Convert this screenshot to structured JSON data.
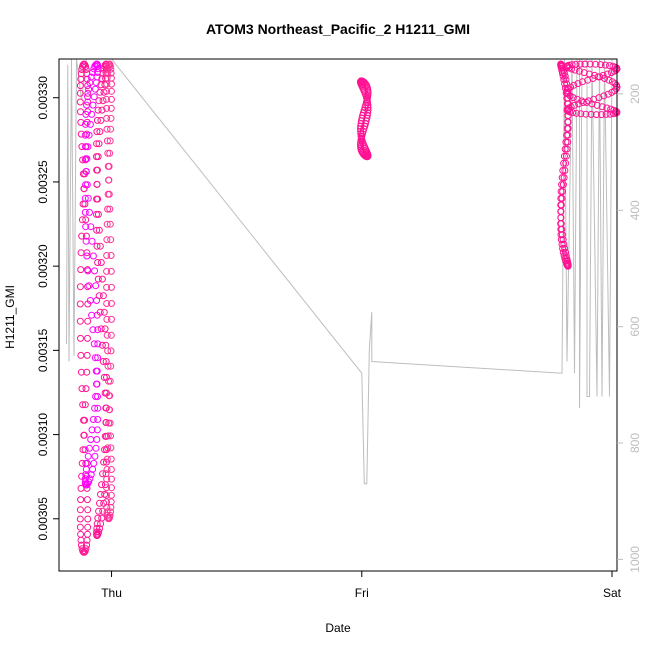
{
  "chart_data": {
    "type": "scatter",
    "title": "ATOM3 Northeast_Pacific_2 H1211_GMI",
    "xlabel": "Date",
    "ylabel": "H1211_GMI",
    "x_ticks": [
      "Thu",
      "Fri",
      "Sat"
    ],
    "y_ticks": [
      "0.00305",
      "0.00310",
      "0.00315",
      "0.00320",
      "0.00325",
      "0.00330"
    ],
    "y_tick_values": [
      0.00305,
      0.0031,
      0.00315,
      0.0032,
      0.00325,
      0.0033
    ],
    "ylim": [
      0.003019,
      0.003323
    ],
    "right_axis": {
      "label": "",
      "ticks": [
        "200",
        "400",
        "600",
        "800",
        "1000"
      ],
      "tick_values": [
        200,
        400,
        600,
        800,
        1000
      ],
      "inverted": true,
      "lim": [
        1020,
        140
      ],
      "color": "#bdbdbd"
    },
    "xlim_days": [
      -0.21,
      2.02
    ],
    "marker_colors": [
      "#ff00ff",
      "#ff1493",
      "#ff3399",
      "#cc33cc"
    ],
    "point_groups": [
      {
        "center_day": -0.11,
        "day_span": 0.03,
        "top": 0.00332,
        "bottom": 0.00303,
        "color": "#ff1493"
      },
      {
        "center_day": -0.08,
        "day_span": 0.05,
        "top": 0.00332,
        "bottom": 0.00307,
        "color": "#ff00ff"
      },
      {
        "center_day": -0.04,
        "day_span": 0.04,
        "top": 0.00332,
        "bottom": 0.00304,
        "color": "#ff1493"
      },
      {
        "center_day": -0.01,
        "day_span": 0.02,
        "top": 0.00332,
        "bottom": 0.00305,
        "color": "#ff3399"
      },
      {
        "center_day": 1.01,
        "day_span": 0.03,
        "top": 0.00331,
        "bottom": 0.003265,
        "color": "#ff1493"
      },
      {
        "center_day": 1.81,
        "day_span": 0.03,
        "top": 0.00332,
        "bottom": 0.0032,
        "color": "#ff1493"
      },
      {
        "center_day": 1.92,
        "day_span": 0.2,
        "top": 0.00332,
        "bottom": 0.00329,
        "color": "#ff1493"
      }
    ],
    "depth_series": [
      {
        "day": -0.18,
        "value": 630
      },
      {
        "day": -0.175,
        "value": 150
      },
      {
        "day": -0.17,
        "value": 660
      },
      {
        "day": -0.16,
        "value": 140
      },
      {
        "day": -0.15,
        "value": 650
      },
      {
        "day": -0.14,
        "value": 140
      },
      {
        "day": -0.12,
        "value": 210
      },
      {
        "day": -0.1,
        "value": 140
      },
      {
        "day": 0.0,
        "value": 140
      },
      {
        "day": 1.0,
        "value": 680
      },
      {
        "day": 1.01,
        "value": 870
      },
      {
        "day": 1.02,
        "value": 870
      },
      {
        "day": 1.03,
        "value": 640
      },
      {
        "day": 1.04,
        "value": 575
      },
      {
        "day": 1.04,
        "value": 660
      },
      {
        "day": 1.8,
        "value": 680
      },
      {
        "day": 1.81,
        "value": 140
      },
      {
        "day": 1.82,
        "value": 660
      },
      {
        "day": 1.84,
        "value": 140
      },
      {
        "day": 1.85,
        "value": 680
      },
      {
        "day": 1.86,
        "value": 140
      },
      {
        "day": 1.87,
        "value": 140
      },
      {
        "day": 1.87,
        "value": 740
      },
      {
        "day": 1.88,
        "value": 140
      },
      {
        "day": 1.9,
        "value": 140
      },
      {
        "day": 1.9,
        "value": 720
      },
      {
        "day": 1.91,
        "value": 720
      },
      {
        "day": 1.92,
        "value": 140
      },
      {
        "day": 1.94,
        "value": 720
      },
      {
        "day": 1.95,
        "value": 140
      },
      {
        "day": 1.96,
        "value": 720
      },
      {
        "day": 1.97,
        "value": 140
      },
      {
        "day": 1.99,
        "value": 720
      },
      {
        "day": 2.0,
        "value": 140
      }
    ]
  }
}
